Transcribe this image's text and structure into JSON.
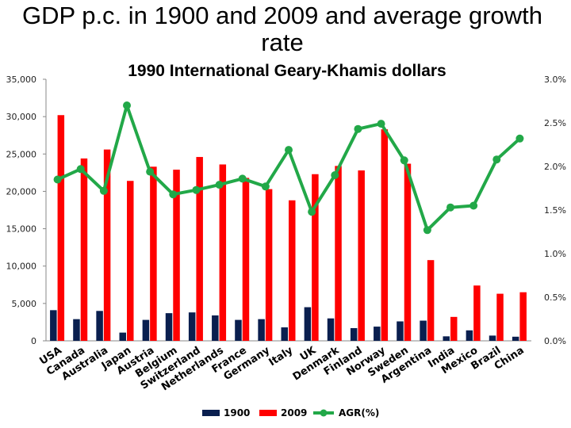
{
  "chart_data": {
    "type": "bar",
    "title": "GDP p.c. in 1900 and 2009 and average growth rate",
    "title_line1": "GDP p.c. in 1900 and 2009 and average growth",
    "title_line2": "rate",
    "subtitle": "1990 International Geary-Khamis dollars",
    "categories": [
      "USA",
      "Canada",
      "Australia",
      "Japan",
      "Austria",
      "Belgium",
      "Switzerland",
      "Netherlands",
      "France",
      "Germany",
      "Italy",
      "UK",
      "Denmark",
      "Finland",
      "Norway",
      "Sweden",
      "Argentina",
      "India",
      "Mexico",
      "Brazil",
      "China"
    ],
    "series": [
      {
        "name": "1900",
        "type": "bar",
        "color": "#0a1f4f",
        "values": [
          4100,
          2900,
          4000,
          1100,
          2800,
          3700,
          3800,
          3400,
          2800,
          2900,
          1800,
          4500,
          3000,
          1700,
          1900,
          2600,
          2700,
          600,
          1400,
          700,
          550
        ]
      },
      {
        "name": "2009",
        "type": "bar",
        "color": "#ff0000",
        "values": [
          30200,
          24400,
          25600,
          21400,
          23300,
          22900,
          24600,
          23600,
          21800,
          20300,
          18800,
          22300,
          23400,
          22800,
          28300,
          23700,
          10800,
          3200,
          7400,
          6300,
          6500
        ]
      },
      {
        "name": "AGR(%)",
        "type": "line",
        "axis": "right",
        "color": "#22a848",
        "values": [
          1.85,
          1.97,
          1.72,
          2.7,
          1.94,
          1.68,
          1.73,
          1.79,
          1.86,
          1.77,
          2.19,
          1.48,
          1.9,
          2.43,
          2.49,
          2.07,
          1.27,
          1.53,
          1.55,
          2.08,
          2.32
        ]
      }
    ],
    "y_left": {
      "min": 0,
      "max": 35000,
      "ticks": [
        "0",
        "5,000",
        "10,000",
        "15,000",
        "20,000",
        "25,000",
        "30,000",
        "35,000"
      ]
    },
    "y_right": {
      "min": 0,
      "max": 3.0,
      "ticks": [
        "0.0%",
        "0.5%",
        "1.0%",
        "1.5%",
        "2.0%",
        "2.5%",
        "3.0%"
      ]
    },
    "legend": [
      {
        "label": "1900",
        "color": "#0a1f4f",
        "kind": "box"
      },
      {
        "label": "2009",
        "color": "#ff0000",
        "kind": "box"
      },
      {
        "label": "AGR(%)",
        "color": "#22a848",
        "kind": "line"
      }
    ],
    "legend_position": "bottom"
  }
}
